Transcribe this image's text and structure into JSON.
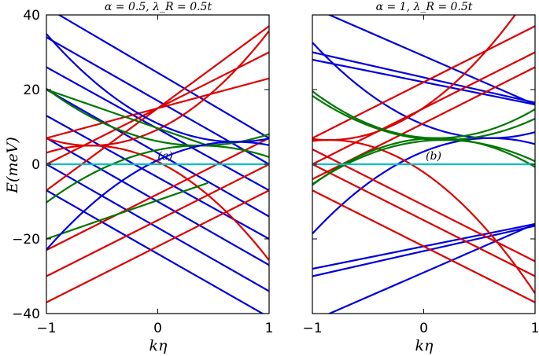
{
  "chart_data": [
    {
      "type": "line",
      "title": "α = 0.5, λ_R = 0.5t",
      "panel_label": "(a)",
      "xlabel": "kη",
      "ylabel": "E(meV)",
      "xlim": [
        -1,
        1
      ],
      "ylim": [
        -40,
        40
      ],
      "xticks": [
        -1,
        0,
        1
      ],
      "xtick_labels": [
        "−1",
        "0",
        "1"
      ],
      "yticks": [
        -40,
        -20,
        0,
        20,
        40
      ],
      "ytick_labels": [
        "−40",
        "−20",
        "0",
        "20",
        "40"
      ],
      "series": [
        {
          "color": "#0000dd",
          "kind": "line",
          "x": [
            -1,
            1
          ],
          "y": [
            42,
            7
          ]
        },
        {
          "color": "#0000dd",
          "kind": "line",
          "x": [
            -1,
            1
          ],
          "y": [
            34,
            0
          ]
        },
        {
          "color": "#0000dd",
          "kind": "line",
          "x": [
            -1,
            1
          ],
          "y": [
            26,
            -7
          ]
        },
        {
          "color": "#0000dd",
          "kind": "line",
          "x": [
            -1,
            1
          ],
          "y": [
            20,
            -14
          ]
        },
        {
          "color": "#0000dd",
          "kind": "line",
          "x": [
            -1,
            1
          ],
          "y": [
            13,
            -20
          ]
        },
        {
          "color": "#0000dd",
          "kind": "line",
          "x": [
            -1,
            1
          ],
          "y": [
            7,
            -27
          ]
        },
        {
          "color": "#0000dd",
          "kind": "line",
          "x": [
            -1,
            1
          ],
          "y": [
            0,
            -34
          ]
        },
        {
          "color": "#0000dd",
          "kind": "line",
          "x": [
            -1,
            1
          ],
          "y": [
            -7,
            -41
          ]
        },
        {
          "color": "#dd0000",
          "kind": "line",
          "x": [
            -1,
            1
          ],
          "y": [
            -7,
            37
          ]
        },
        {
          "color": "#dd0000",
          "kind": "line",
          "x": [
            -1,
            1
          ],
          "y": [
            0,
            30
          ]
        },
        {
          "color": "#dd0000",
          "kind": "line",
          "x": [
            -1,
            1
          ],
          "y": [
            7,
            23
          ]
        },
        {
          "color": "#dd0000",
          "kind": "line",
          "x": [
            -1,
            1
          ],
          "y": [
            -23,
            7
          ]
        },
        {
          "color": "#dd0000",
          "kind": "line",
          "x": [
            -1,
            1
          ],
          "y": [
            -30,
            0
          ]
        },
        {
          "color": "#dd0000",
          "kind": "line",
          "x": [
            -1,
            1
          ],
          "y": [
            -37,
            -7
          ]
        },
        {
          "color": "#dd0000",
          "kind": "parabola",
          "vertex": [
            -0.6,
            5
          ],
          "a": 12,
          "sign": 1
        },
        {
          "color": "#dd0000",
          "kind": "parabola",
          "vertex": [
            -0.6,
            -5
          ],
          "a": 12,
          "sign": -1
        },
        {
          "color": "#007700",
          "kind": "parabola",
          "vertex": [
            0.38,
            5
          ],
          "a": 8,
          "sign": 1
        },
        {
          "color": "#007700",
          "kind": "parabola",
          "vertex": [
            0.38,
            -5
          ],
          "a": 8,
          "sign": -1
        },
        {
          "color": "#007700",
          "kind": "line",
          "x": [
            -1,
            0.45
          ],
          "y": [
            20,
            5
          ]
        },
        {
          "color": "#007700",
          "kind": "line",
          "x": [
            -1,
            0.45
          ],
          "y": [
            -20,
            -5
          ]
        },
        {
          "color": "#0000dd",
          "kind": "parabola",
          "vertex": [
            0.7,
            6
          ],
          "a": 10,
          "sign": 1
        },
        {
          "color": "#0000dd",
          "kind": "parabola",
          "vertex": [
            0.7,
            -6
          ],
          "a": 10,
          "sign": -1
        },
        {
          "color": "#00bfc4",
          "kind": "line",
          "x": [
            -1,
            1
          ],
          "y": [
            0,
            0
          ]
        }
      ]
    },
    {
      "type": "line",
      "title": "α = 1, λ_R = 0.5t",
      "panel_label": "(b)",
      "xlabel": "kη",
      "ylabel": "",
      "xlim": [
        -1,
        1
      ],
      "ylim": [
        -40,
        40
      ],
      "xticks": [
        -1,
        0,
        1
      ],
      "xtick_labels": [
        "−1",
        "0",
        "1"
      ],
      "yticks": [
        -40,
        -20,
        0,
        20,
        40
      ],
      "series": [
        {
          "color": "#0000dd",
          "kind": "line",
          "x": [
            -1,
            1
          ],
          "y": [
            42,
            16
          ]
        },
        {
          "color": "#0000dd",
          "kind": "line",
          "x": [
            -1,
            1
          ],
          "y": [
            30,
            16.5
          ]
        },
        {
          "color": "#0000dd",
          "kind": "line",
          "x": [
            -1,
            1
          ],
          "y": [
            28,
            16
          ]
        },
        {
          "color": "#0000dd",
          "kind": "line",
          "x": [
            -1,
            1
          ],
          "y": [
            -42,
            -16
          ]
        },
        {
          "color": "#0000dd",
          "kind": "line",
          "x": [
            -1,
            1
          ],
          "y": [
            -30,
            -16.5
          ]
        },
        {
          "color": "#0000dd",
          "kind": "line",
          "x": [
            -1,
            1
          ],
          "y": [
            -28,
            -16
          ]
        },
        {
          "color": "#0000dd",
          "kind": "parabola",
          "vertex": [
            0.6,
            7
          ],
          "a": 10,
          "sign": 1
        },
        {
          "color": "#0000dd",
          "kind": "parabola",
          "vertex": [
            0.6,
            -7
          ],
          "a": 10,
          "sign": -1
        },
        {
          "color": "#dd0000",
          "kind": "line",
          "x": [
            -1,
            1
          ],
          "y": [
            7,
            37
          ]
        },
        {
          "color": "#dd0000",
          "kind": "line",
          "x": [
            -1,
            1
          ],
          "y": [
            0,
            30
          ]
        },
        {
          "color": "#dd0000",
          "kind": "line",
          "x": [
            -1,
            1
          ],
          "y": [
            -4,
            26
          ]
        },
        {
          "color": "#dd0000",
          "kind": "line",
          "x": [
            -1,
            1
          ],
          "y": [
            -7,
            -37
          ]
        },
        {
          "color": "#dd0000",
          "kind": "line",
          "x": [
            -1,
            1
          ],
          "y": [
            0,
            -30
          ]
        },
        {
          "color": "#dd0000",
          "kind": "line",
          "x": [
            -1,
            1
          ],
          "y": [
            4,
            -26
          ]
        },
        {
          "color": "#dd0000",
          "kind": "parabola",
          "vertex": [
            -0.85,
            6.5
          ],
          "a": 12,
          "sign": 1
        },
        {
          "color": "#dd0000",
          "kind": "parabola",
          "vertex": [
            -0.85,
            -6.5
          ],
          "a": 12,
          "sign": -1
        },
        {
          "color": "#007700",
          "kind": "parabola",
          "vertex": [
            0.12,
            7
          ],
          "a": 10,
          "sign": 1
        },
        {
          "color": "#007700",
          "kind": "parabola",
          "vertex": [
            0.12,
            -7
          ],
          "a": 10,
          "sign": -1
        },
        {
          "color": "#007700",
          "kind": "parabola",
          "vertex": [
            0.18,
            6.5
          ],
          "a": 8.5,
          "sign": 1
        },
        {
          "color": "#007700",
          "kind": "parabola",
          "vertex": [
            0.18,
            -6.5
          ],
          "a": 8.5,
          "sign": -1
        },
        {
          "color": "#00bfc4",
          "kind": "line",
          "x": [
            -1,
            1
          ],
          "y": [
            0,
            0
          ]
        }
      ]
    }
  ]
}
